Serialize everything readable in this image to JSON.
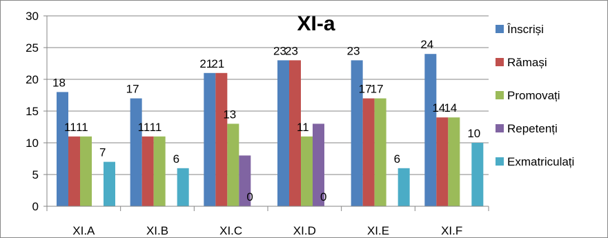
{
  "chart_data": {
    "type": "bar",
    "title": "XI-a",
    "categories": [
      "XI.A",
      "XI.B",
      "XI.C",
      "XI.D",
      "XI.E",
      "XI.F"
    ],
    "ylim": [
      0,
      30
    ],
    "yticks": [
      0,
      5,
      10,
      15,
      20,
      25,
      30
    ],
    "grid": true,
    "legend_position": "right",
    "series": [
      {
        "name": "Înscriși",
        "color": "#4F81BD",
        "values": [
          18,
          17,
          21,
          23,
          23,
          24
        ]
      },
      {
        "name": "Rămași",
        "color": "#C0504D",
        "values": [
          11,
          11,
          21,
          23,
          17,
          14
        ]
      },
      {
        "name": "Promovați",
        "color": "#9BBB59",
        "values": [
          11,
          11,
          13,
          11,
          17,
          14
        ]
      },
      {
        "name": "Repetenți",
        "color": "#8064A2",
        "values": [
          null,
          null,
          8,
          13,
          null,
          null
        ]
      },
      {
        "name": "Exmatriculați",
        "color": "#4BACC6",
        "values": [
          7,
          6,
          0,
          0,
          6,
          10
        ]
      }
    ],
    "data_labels": [
      {
        "series": 0,
        "category": 0,
        "text": "18"
      },
      {
        "series": 1,
        "category": 0,
        "text": "11"
      },
      {
        "series": 2,
        "category": 0,
        "text": "11"
      },
      {
        "series": 4,
        "category": 0,
        "text": "7"
      },
      {
        "series": 0,
        "category": 1,
        "text": "17"
      },
      {
        "series": 1,
        "category": 1,
        "text": "11"
      },
      {
        "series": 2,
        "category": 1,
        "text": "11"
      },
      {
        "series": 4,
        "category": 1,
        "text": "6"
      },
      {
        "series": 0,
        "category": 2,
        "text": "21"
      },
      {
        "series": 1,
        "category": 2,
        "text": "21"
      },
      {
        "series": 2,
        "category": 2,
        "text": "13"
      },
      {
        "series": 4,
        "category": 2,
        "text": "0"
      },
      {
        "series": 0,
        "category": 3,
        "text": "23"
      },
      {
        "series": 1,
        "category": 3,
        "text": "23"
      },
      {
        "series": 2,
        "category": 3,
        "text": "11"
      },
      {
        "series": 4,
        "category": 3,
        "text": "0"
      },
      {
        "series": 0,
        "category": 4,
        "text": "23"
      },
      {
        "series": 1,
        "category": 4,
        "text": "17"
      },
      {
        "series": 2,
        "category": 4,
        "text": "17"
      },
      {
        "series": 4,
        "category": 4,
        "text": "6"
      },
      {
        "series": 0,
        "category": 5,
        "text": "24"
      },
      {
        "series": 1,
        "category": 5,
        "text": "14"
      },
      {
        "series": 2,
        "category": 5,
        "text": "14"
      },
      {
        "series": 4,
        "category": 5,
        "text": "10"
      }
    ]
  }
}
